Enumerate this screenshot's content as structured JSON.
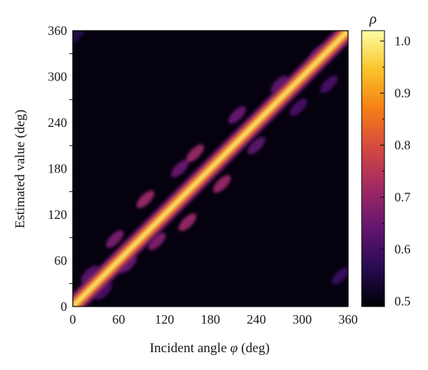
{
  "chart_data": {
    "type": "heatmap",
    "xlabel_prefix": "Incident angle ",
    "xlabel_symbol": "φ",
    "xlabel_suffix": " (deg)",
    "ylabel": "Estimated value (deg)",
    "xlim": [
      0,
      360
    ],
    "ylim": [
      0,
      360
    ],
    "x_ticks": [
      0,
      60,
      120,
      180,
      240,
      300,
      360
    ],
    "y_ticks": [
      0,
      60,
      120,
      180,
      240,
      300,
      360
    ],
    "x_tick_labels": [
      "0",
      "60",
      "120",
      "180",
      "240",
      "300",
      "360"
    ],
    "y_tick_labels": [
      "0",
      "60",
      "120",
      "180",
      "240",
      "300",
      "360"
    ],
    "colorbar": {
      "title": "ρ",
      "range": [
        0.49,
        1.02
      ],
      "ticks": [
        0.5,
        0.6,
        0.7,
        0.8,
        0.9,
        1.0
      ],
      "tick_labels": [
        "0.5",
        "0.6",
        "0.7",
        "0.8",
        "0.9",
        "1.0"
      ],
      "colormap": "inferno",
      "colors": [
        "#000004",
        "#280b54",
        "#65156e",
        "#9f2a63",
        "#d44842",
        "#f57d15",
        "#fac228",
        "#fcffa4"
      ]
    },
    "background_value": 0.5,
    "diagonal": {
      "description": "peak along estimated = incident",
      "peak_value": 1.0
    },
    "side_lobes": [
      {
        "x": 22,
        "y": 42,
        "value": 0.62
      },
      {
        "x": 40,
        "y": 20,
        "value": 0.6
      },
      {
        "x": 55,
        "y": 88,
        "value": 0.66
      },
      {
        "x": 72,
        "y": 55,
        "value": 0.64
      },
      {
        "x": 95,
        "y": 140,
        "value": 0.7
      },
      {
        "x": 110,
        "y": 85,
        "value": 0.67
      },
      {
        "x": 150,
        "y": 110,
        "value": 0.7
      },
      {
        "x": 140,
        "y": 180,
        "value": 0.64
      },
      {
        "x": 160,
        "y": 200,
        "value": 0.7
      },
      {
        "x": 195,
        "y": 160,
        "value": 0.7
      },
      {
        "x": 215,
        "y": 250,
        "value": 0.64
      },
      {
        "x": 240,
        "y": 210,
        "value": 0.62
      },
      {
        "x": 270,
        "y": 290,
        "value": 0.62
      },
      {
        "x": 295,
        "y": 260,
        "value": 0.6
      },
      {
        "x": 320,
        "y": 330,
        "value": 0.63
      },
      {
        "x": 335,
        "y": 290,
        "value": 0.6
      },
      {
        "x": 350,
        "y": 40,
        "value": 0.58
      },
      {
        "x": 5,
        "y": 355,
        "value": 0.55
      }
    ]
  }
}
